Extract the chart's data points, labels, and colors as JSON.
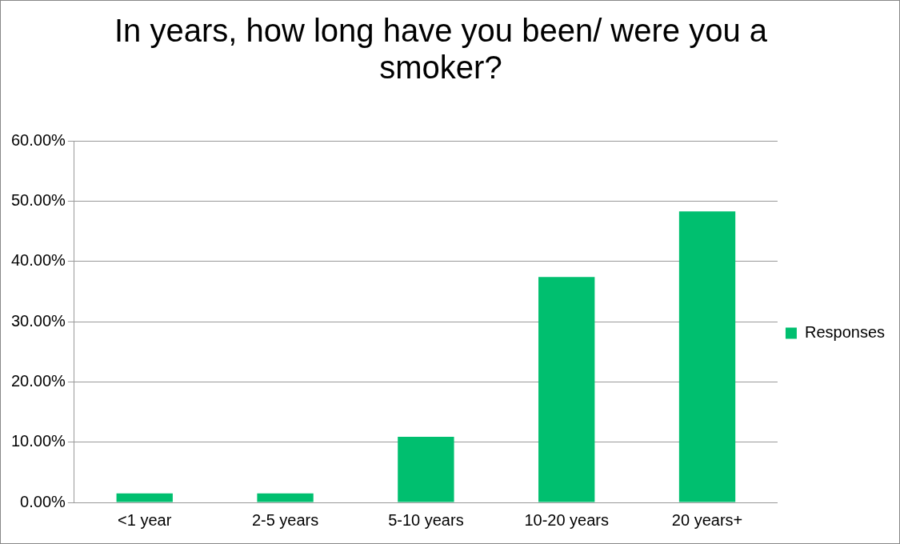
{
  "chart_data": {
    "type": "bar",
    "title": "In years, how long have you been/ were you a smoker?",
    "categories": [
      "<1 year",
      "2-5 years",
      "5-10 years",
      "10-20 years",
      "20 years+"
    ],
    "series": [
      {
        "name": "Responses",
        "color": "#00bf6f",
        "values": [
          1.5,
          1.5,
          10.9,
          37.4,
          48.3
        ]
      }
    ],
    "ylim": [
      0,
      60
    ],
    "yticks": [
      {
        "value": 0,
        "label": "0.00%"
      },
      {
        "value": 10,
        "label": "10.00%"
      },
      {
        "value": 20,
        "label": "20.00%"
      },
      {
        "value": 30,
        "label": "30.00%"
      },
      {
        "value": 40,
        "label": "40.00%"
      },
      {
        "value": 50,
        "label": "50.00%"
      },
      {
        "value": 60,
        "label": "60.00%"
      }
    ],
    "grid": "y",
    "legend": "right"
  }
}
